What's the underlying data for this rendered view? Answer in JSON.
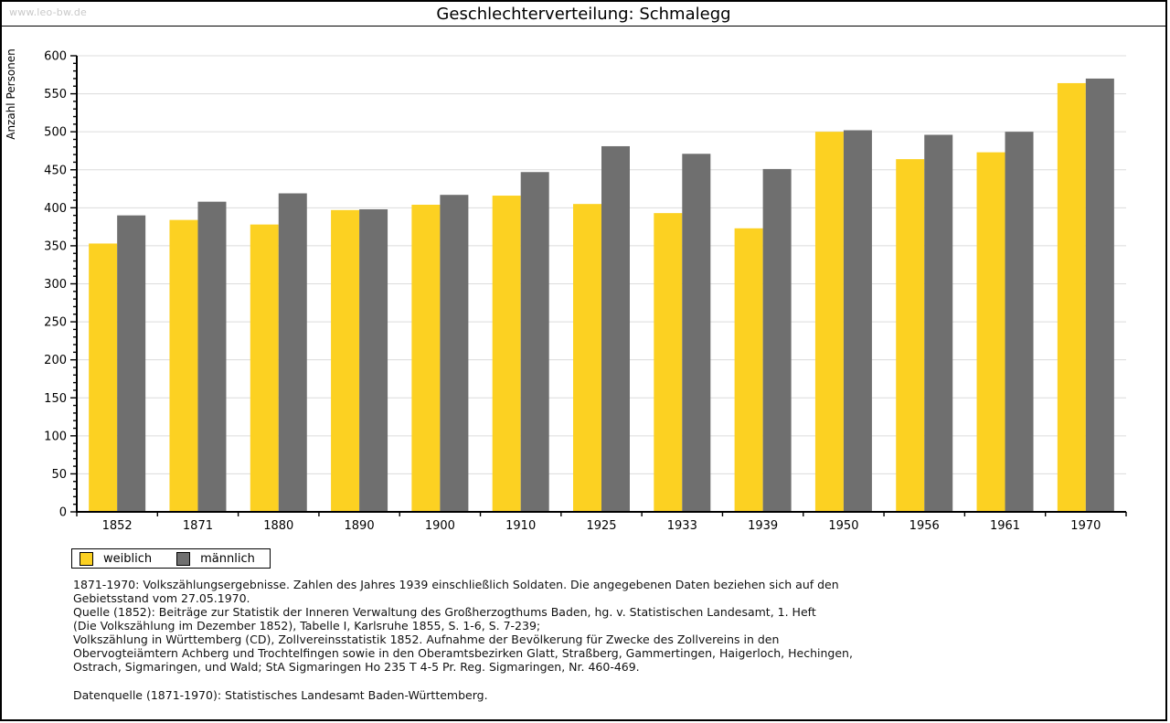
{
  "watermark": "www.leo-bw.de",
  "title": "Geschlechterverteilung: Schmalegg",
  "chart_data": {
    "type": "bar",
    "title": "Geschlechterverteilung: Schmalegg",
    "xlabel": "",
    "ylabel": "Anzahl Personen",
    "ylim": [
      0,
      600
    ],
    "ytick_step": 50,
    "minor_tick_step": 10,
    "grid": true,
    "legend_position": "bottom-left",
    "categories": [
      "1852",
      "1871",
      "1880",
      "1890",
      "1900",
      "1910",
      "1925",
      "1933",
      "1939",
      "1950",
      "1956",
      "1961",
      "1970"
    ],
    "series": [
      {
        "name": "weiblich",
        "color": "#FCD122",
        "values": [
          353,
          384,
          378,
          397,
          404,
          416,
          405,
          393,
          373,
          500,
          464,
          473,
          564
        ]
      },
      {
        "name": "männlich",
        "color": "#6F6F6F",
        "values": [
          390,
          408,
          419,
          398,
          417,
          447,
          481,
          471,
          451,
          502,
          496,
          500,
          570
        ]
      }
    ],
    "colors": {
      "gridline": "#dcdcdc",
      "axis": "#000000"
    }
  },
  "footnote": {
    "lines": [
      "1871-1970: Volkszählungsergebnisse. Zahlen des Jahres 1939 einschließlich Soldaten. Die angegebenen Daten beziehen sich auf den",
      "Gebietsstand vom 27.05.1970.",
      "Quelle (1852): Beiträge zur Statistik der Inneren Verwaltung des Großherzogthums Baden, hg. v. Statistischen Landesamt, 1. Heft",
      "(Die Volkszählung im Dezember 1852), Tabelle I, Karlsruhe 1855, S. 1-6, S. 7-239;",
      "Volkszählung in Württemberg (CD), Zollvereinsstatistik 1852. Aufnahme der Bevölkerung für Zwecke des Zollvereins in den",
      "Obervogteiämtern Achberg und Trochtelfingen sowie in den Oberamtsbezirken Glatt, Straßberg, Gammertingen, Haigerloch, Hechingen,",
      "Ostrach, Sigmaringen, und Wald; StA Sigmaringen Ho 235 T 4-5 Pr. Reg. Sigmaringen, Nr. 460-469."
    ],
    "datasource": "Datenquelle (1871-1970): Statistisches Landesamt Baden-Württemberg."
  }
}
